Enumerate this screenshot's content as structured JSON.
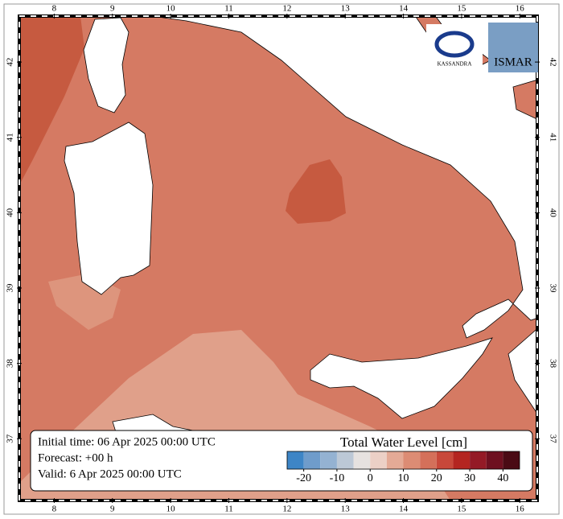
{
  "map": {
    "xlim": [
      7.4,
      16.3
    ],
    "ylim": [
      36.18,
      42.61
    ],
    "xticks": [
      8,
      9,
      10,
      11,
      12,
      13,
      14,
      15,
      16
    ],
    "yticks": [
      37,
      38,
      39,
      40,
      41,
      42
    ]
  },
  "info": [
    "Initial time: 06 Apr 2025 00:00 UTC",
    "Forecast: +00 h",
    "Valid:  6 Apr 2025 00:00 UTC"
  ],
  "colorbar": {
    "title": "Total Water Level [cm]",
    "clim": [
      -25,
      45
    ],
    "ticks": [
      -20,
      -10,
      0,
      10,
      20,
      30,
      40
    ],
    "colors": [
      "#3d85c6",
      "#6f9ccb",
      "#94b2d2",
      "#bcc8d6",
      "#e6e2e0",
      "#ecd0c6",
      "#e4aa96",
      "#dc8c74",
      "#d4705a",
      "#c8483a",
      "#b42520",
      "#941a26",
      "#6e1020",
      "#4a0a14"
    ]
  },
  "logos": [
    "KASSANDRA",
    "ISMAR"
  ]
}
